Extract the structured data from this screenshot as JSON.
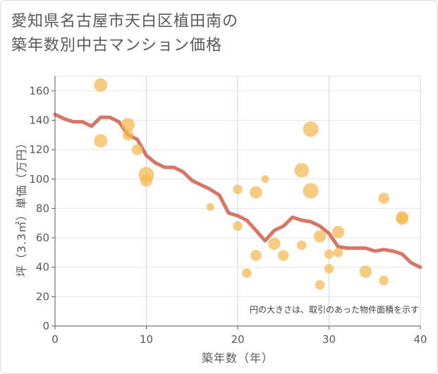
{
  "title_line1": "愛知県名古屋市天白区植田南の",
  "title_line2": "築年数別中古マンション価格",
  "chart_data": {
    "type": "scatter",
    "xlabel": "築年数（年）",
    "ylabel": "坪（3.3㎡）単価（万円）",
    "xlim": [
      0,
      40
    ],
    "ylim": [
      0,
      170
    ],
    "xticks": [
      0,
      10,
      20,
      30,
      40
    ],
    "yticks": [
      0,
      20,
      40,
      60,
      80,
      100,
      120,
      140,
      160
    ],
    "grid": true,
    "note": "円の大きさは、取引のあった物件面積を示す",
    "colors": {
      "bubble": "#f5b94f",
      "line": "#d46a57"
    },
    "bubbles": [
      {
        "x": 5,
        "y": 164,
        "size": 3
      },
      {
        "x": 5,
        "y": 126,
        "size": 3
      },
      {
        "x": 8,
        "y": 137,
        "size": 3
      },
      {
        "x": 8,
        "y": 130,
        "size": 2
      },
      {
        "x": 9,
        "y": 120,
        "size": 2
      },
      {
        "x": 10,
        "y": 103,
        "size": 4
      },
      {
        "x": 10,
        "y": 99,
        "size": 2.5
      },
      {
        "x": 17,
        "y": 81,
        "size": 1
      },
      {
        "x": 20,
        "y": 93,
        "size": 1.5
      },
      {
        "x": 20,
        "y": 68,
        "size": 1.5
      },
      {
        "x": 21,
        "y": 36,
        "size": 1.5
      },
      {
        "x": 22,
        "y": 91,
        "size": 2.5
      },
      {
        "x": 22,
        "y": 48,
        "size": 2
      },
      {
        "x": 23,
        "y": 100,
        "size": 1
      },
      {
        "x": 24,
        "y": 56,
        "size": 2.5
      },
      {
        "x": 25,
        "y": 48,
        "size": 2
      },
      {
        "x": 27,
        "y": 106,
        "size": 3.5
      },
      {
        "x": 27,
        "y": 55,
        "size": 1.5
      },
      {
        "x": 28,
        "y": 134,
        "size": 4
      },
      {
        "x": 28,
        "y": 92,
        "size": 4
      },
      {
        "x": 29,
        "y": 61,
        "size": 2.5
      },
      {
        "x": 29,
        "y": 28,
        "size": 1.5
      },
      {
        "x": 30,
        "y": 49,
        "size": 1.5
      },
      {
        "x": 30,
        "y": 39,
        "size": 1.5
      },
      {
        "x": 31,
        "y": 64,
        "size": 2.5
      },
      {
        "x": 31,
        "y": 50,
        "size": 1.5
      },
      {
        "x": 34,
        "y": 37,
        "size": 2.5
      },
      {
        "x": 36,
        "y": 87,
        "size": 2
      },
      {
        "x": 36,
        "y": 31,
        "size": 1.5
      },
      {
        "x": 38,
        "y": 74,
        "size": 2.5
      },
      {
        "x": 38,
        "y": 73,
        "size": 2.5
      }
    ],
    "trend": {
      "x": [
        0,
        1,
        2,
        3,
        4,
        5,
        6,
        7,
        8,
        9,
        10,
        11,
        12,
        13,
        14,
        15,
        16,
        17,
        18,
        19,
        20,
        21,
        22,
        23,
        24,
        25,
        26,
        27,
        28,
        29,
        30,
        31,
        32,
        33,
        34,
        35,
        36,
        37,
        38,
        39,
        40
      ],
      "y": [
        144,
        141,
        139,
        139,
        136,
        142,
        142,
        139,
        130,
        127,
        116,
        111,
        108,
        108,
        105,
        99,
        96,
        93,
        89,
        77,
        75,
        72,
        65,
        58,
        65,
        68,
        74,
        72,
        71,
        68,
        63,
        54,
        53,
        53,
        53,
        51,
        52,
        51,
        49,
        43,
        40
      ]
    }
  }
}
